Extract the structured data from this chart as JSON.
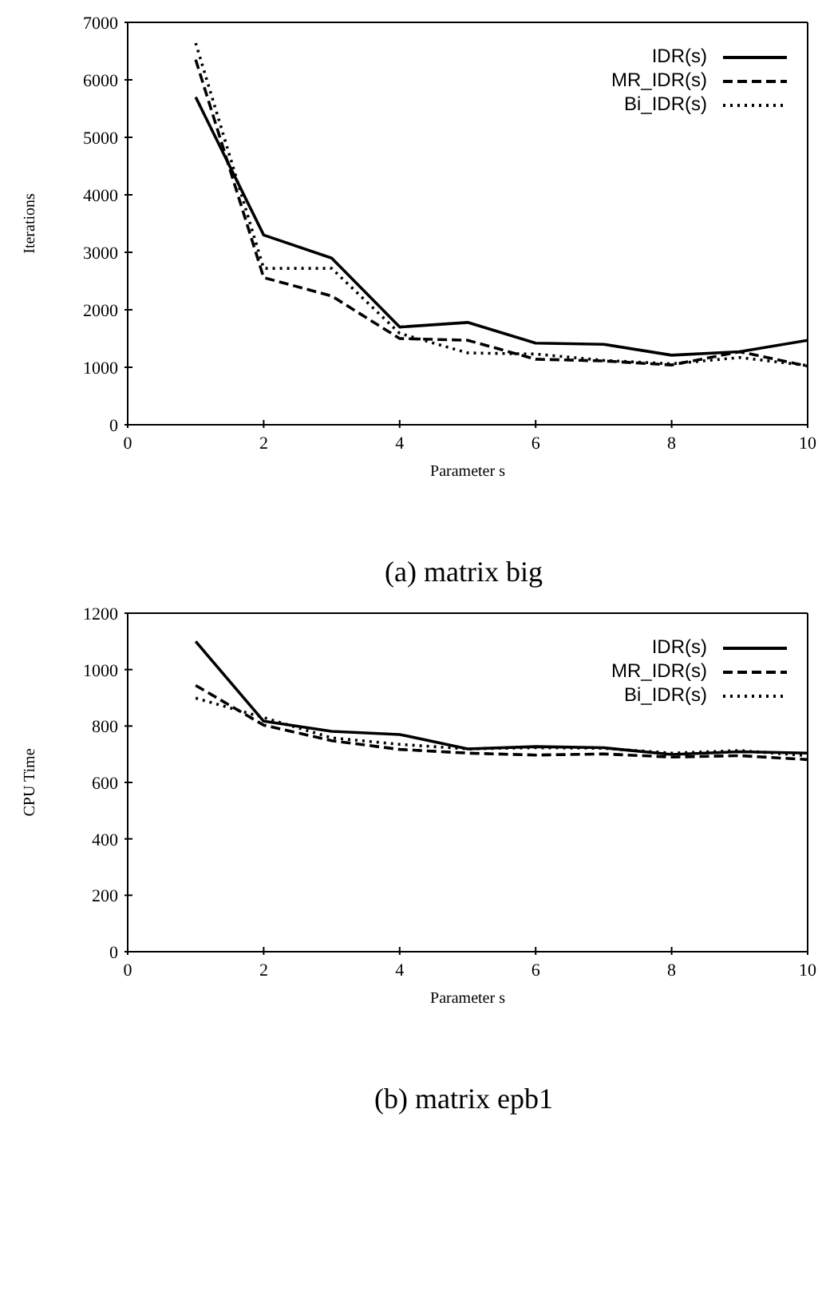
{
  "chart_data": [
    {
      "type": "line",
      "title": "(a) matrix big",
      "xlabel": "Parameter s",
      "ylabel": "Iterations",
      "x": [
        1,
        2,
        3,
        4,
        5,
        6,
        7,
        8,
        9,
        10
      ],
      "xlim": [
        0,
        10
      ],
      "xticks": [
        0,
        2,
        4,
        6,
        8,
        10
      ],
      "ylim": [
        0,
        7000
      ],
      "yticks": [
        0,
        1000,
        2000,
        3000,
        4000,
        5000,
        6000,
        7000
      ],
      "grid": false,
      "legend": "top right",
      "series": [
        {
          "name": "IDR(s)",
          "color": "#000000",
          "line_style": "solid",
          "values": [
            5700,
            3300,
            2900,
            1700,
            1780,
            1420,
            1400,
            1210,
            1270,
            1470
          ]
        },
        {
          "name": "MR_IDR(s)",
          "color": "#000000",
          "line_style": "dashed",
          "values": [
            6350,
            2560,
            2240,
            1500,
            1470,
            1140,
            1110,
            1040,
            1270,
            1020
          ]
        },
        {
          "name": "Bi_IDR(s)",
          "color": "#000000",
          "line_style": "dotted",
          "values": [
            6640,
            2720,
            2720,
            1590,
            1250,
            1230,
            1120,
            1060,
            1170,
            1030
          ]
        }
      ]
    },
    {
      "type": "line",
      "title": "(b) matrix epb1",
      "xlabel": "Parameter s",
      "ylabel": "CPU Time",
      "x": [
        1,
        2,
        3,
        4,
        5,
        6,
        7,
        8,
        9,
        10
      ],
      "xlim": [
        0,
        10
      ],
      "xticks": [
        0,
        2,
        4,
        6,
        8,
        10
      ],
      "ylim": [
        0,
        1200
      ],
      "yticks": [
        0,
        200,
        400,
        600,
        800,
        1000,
        1200
      ],
      "grid": false,
      "legend": "top right",
      "series": [
        {
          "name": "IDR(s)",
          "color": "#000000",
          "line_style": "solid",
          "values": [
            1100,
            817,
            781,
            770,
            719,
            727,
            723,
            699,
            709,
            704
          ]
        },
        {
          "name": "MR_IDR(s)",
          "color": "#000000",
          "line_style": "dashed",
          "values": [
            944,
            803,
            748,
            717,
            704,
            697,
            701,
            690,
            695,
            681
          ]
        },
        {
          "name": "Bi_IDR(s)",
          "color": "#000000",
          "line_style": "dotted",
          "values": [
            899,
            830,
            758,
            735,
            719,
            723,
            721,
            704,
            713,
            695
          ]
        }
      ]
    }
  ]
}
